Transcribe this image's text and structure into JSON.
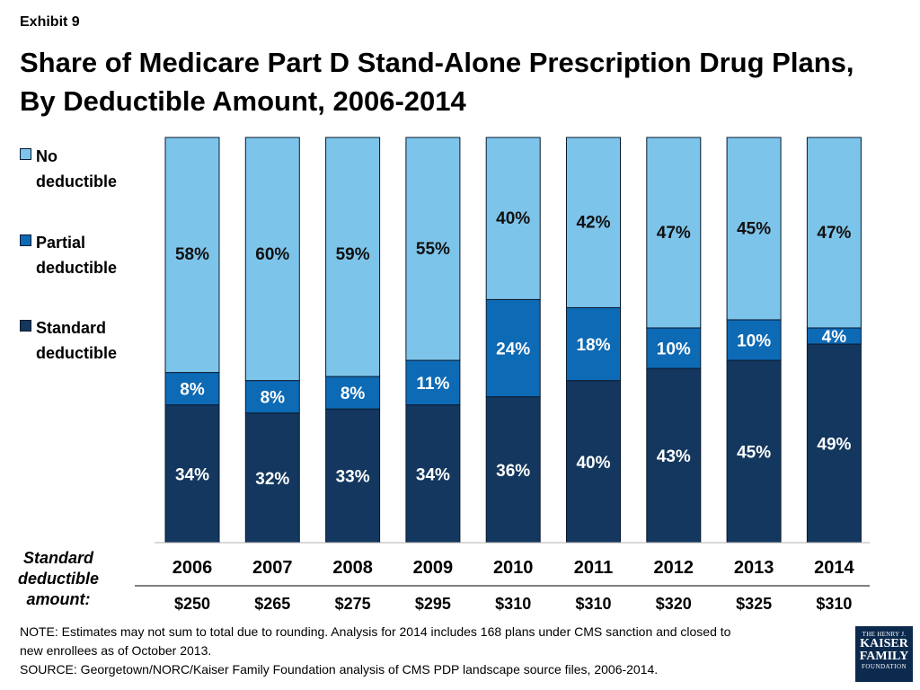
{
  "exhibit": "Exhibit 9",
  "title_lines": [
    "Share of Medicare Part D Stand-Alone Prescription Drug Plans,",
    "By Deductible Amount, 2006-2014"
  ],
  "colors": {
    "no_deductible": "#7dc4ea",
    "partial_deductible": "#0d6ab5",
    "standard_deductible": "#13375e",
    "bar_outline": "#0a1a2e"
  },
  "chart_data": {
    "type": "bar",
    "stacked": true,
    "title": "Share of Medicare Part D Stand-Alone Prescription Drug Plans, By Deductible Amount, 2006-2014",
    "categories": [
      "2006",
      "2007",
      "2008",
      "2009",
      "2010",
      "2011",
      "2012",
      "2013",
      "2014"
    ],
    "series": [
      {
        "name": "Standard deductible",
        "color_key": "standard_deductible",
        "values": [
          34,
          32,
          33,
          34,
          36,
          40,
          43,
          45,
          49
        ]
      },
      {
        "name": "Partial deductible",
        "color_key": "partial_deductible",
        "values": [
          8,
          8,
          8,
          11,
          24,
          18,
          10,
          10,
          4
        ]
      },
      {
        "name": "No deductible",
        "color_key": "no_deductible",
        "values": [
          58,
          60,
          59,
          55,
          40,
          42,
          47,
          45,
          47
        ]
      }
    ],
    "data_labels": [
      [
        "34%",
        "32%",
        "33%",
        "34%",
        "36%",
        "40%",
        "43%",
        "45%",
        "49%"
      ],
      [
        "8%",
        "8%",
        "8%",
        "11%",
        "24%",
        "18%",
        "10%",
        "10%",
        "4%"
      ],
      [
        "58%",
        "60%",
        "59%",
        "55%",
        "40%",
        "42%",
        "47%",
        "45%",
        "47%"
      ]
    ],
    "standard_deductible_amount": [
      "$250",
      "$265",
      "$275",
      "$295",
      "$310",
      "$310",
      "$320",
      "$325",
      "$310"
    ],
    "ylim": [
      0,
      100
    ],
    "xlabel": "",
    "ylabel": "",
    "legend_position": "left"
  },
  "legend": [
    {
      "label_lines": [
        "No",
        "deductible"
      ],
      "color_key": "no_deductible"
    },
    {
      "label_lines": [
        "Partial",
        "deductible"
      ],
      "color_key": "partial_deductible"
    },
    {
      "label_lines": [
        "Standard",
        "deductible"
      ],
      "color_key": "standard_deductible"
    }
  ],
  "row_label_lines": [
    "Standard",
    "deductible",
    "amount:"
  ],
  "note_lines": [
    "NOTE: Estimates may not sum to total due to rounding. Analysis for 2014 includes 168 plans under CMS sanction and closed to",
    "new enrollees as of October 2013.",
    "SOURCE: Georgetown/NORC/Kaiser Family Foundation analysis of CMS PDP landscape source files, 2006-2014."
  ],
  "logo": {
    "top": "THE HENRY J.",
    "line1": "KAISER",
    "line2": "FAMILY",
    "bottom": "FOUNDATION"
  }
}
